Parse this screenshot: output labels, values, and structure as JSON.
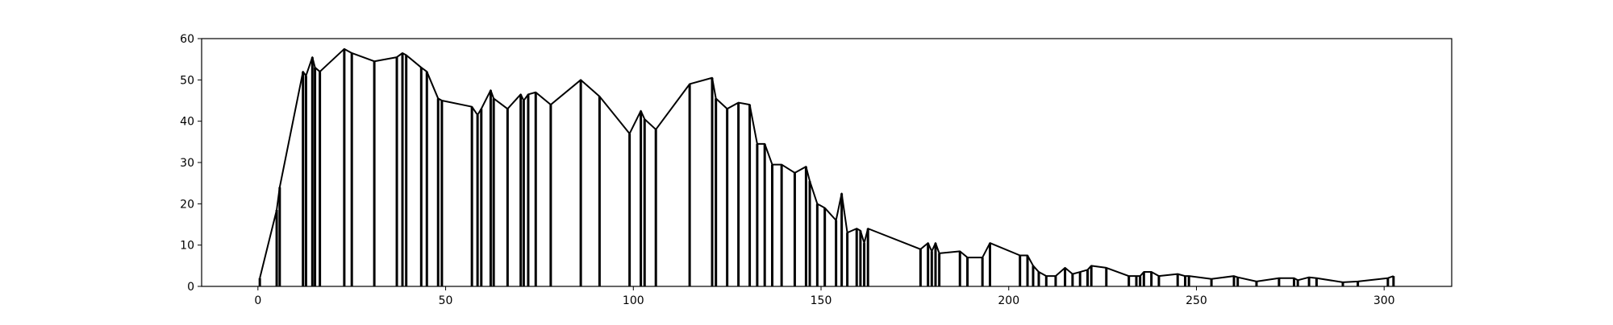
{
  "chart_data": {
    "type": "bar",
    "title": "",
    "xlabel": "",
    "ylabel": "",
    "xlim": [
      -15,
      318
    ],
    "ylim": [
      0,
      60
    ],
    "grid": false,
    "x_ticks": [
      0,
      50,
      100,
      150,
      200,
      250,
      300
    ],
    "y_ticks": [
      0,
      10,
      20,
      30,
      40,
      50,
      60
    ],
    "series": [
      {
        "style": "impulse-with-envelope",
        "color": "#000000",
        "points": [
          [
            0.5,
            2
          ],
          [
            5,
            18.5
          ],
          [
            5.8,
            24
          ],
          [
            12,
            52
          ],
          [
            12.8,
            51
          ],
          [
            14.5,
            55.5
          ],
          [
            15.2,
            53
          ],
          [
            16.5,
            52
          ],
          [
            23,
            57.5
          ],
          [
            25,
            56.5
          ],
          [
            31,
            54.5
          ],
          [
            37,
            55.5
          ],
          [
            38.5,
            56.5
          ],
          [
            39.5,
            56
          ],
          [
            43.5,
            53
          ],
          [
            45,
            52
          ],
          [
            48,
            45.5
          ],
          [
            49,
            45
          ],
          [
            57,
            43.5
          ],
          [
            58.5,
            41.5
          ],
          [
            59.5,
            43
          ],
          [
            62,
            47.5
          ],
          [
            62.8,
            45.5
          ],
          [
            66.5,
            43
          ],
          [
            70,
            46.5
          ],
          [
            70.8,
            45
          ],
          [
            72,
            46.5
          ],
          [
            74,
            47
          ],
          [
            78,
            44
          ],
          [
            86,
            50
          ],
          [
            91,
            46
          ],
          [
            99,
            37
          ],
          [
            102,
            42.5
          ],
          [
            103,
            40.5
          ],
          [
            106,
            38
          ],
          [
            115,
            49
          ],
          [
            121,
            50.5
          ],
          [
            122,
            45.5
          ],
          [
            125,
            43
          ],
          [
            128,
            44.5
          ],
          [
            131,
            44
          ],
          [
            133,
            34.5
          ],
          [
            135,
            34.5
          ],
          [
            137,
            29.5
          ],
          [
            139.5,
            29.5
          ],
          [
            143,
            27.5
          ],
          [
            146,
            29
          ],
          [
            147,
            25.5
          ],
          [
            149,
            20
          ],
          [
            151,
            19
          ],
          [
            154,
            16
          ],
          [
            155.5,
            22.5
          ],
          [
            157,
            13
          ],
          [
            159.5,
            14
          ],
          [
            160.5,
            13.5
          ],
          [
            161.5,
            10.5
          ],
          [
            162.5,
            14
          ],
          [
            176.5,
            9
          ],
          [
            178.5,
            10.5
          ],
          [
            179.5,
            8.5
          ],
          [
            180.5,
            10.5
          ],
          [
            181.5,
            8
          ],
          [
            187,
            8.5
          ],
          [
            189,
            7
          ],
          [
            193,
            7
          ],
          [
            195,
            10.5
          ],
          [
            203,
            7.5
          ],
          [
            205,
            7.5
          ],
          [
            206.5,
            5
          ],
          [
            208,
            3.5
          ],
          [
            210,
            2.5
          ],
          [
            212.5,
            2.5
          ],
          [
            215,
            4.5
          ],
          [
            217,
            3
          ],
          [
            219,
            3.5
          ],
          [
            221,
            4
          ],
          [
            222,
            5
          ],
          [
            226,
            4.5
          ],
          [
            232,
            2.5
          ],
          [
            234,
            2.5
          ],
          [
            235,
            2.5
          ],
          [
            236,
            3.5
          ],
          [
            238,
            3.5
          ],
          [
            240,
            2.5
          ],
          [
            245,
            3
          ],
          [
            247,
            2.5
          ],
          [
            248,
            2.5
          ],
          [
            254,
            1.8
          ],
          [
            260,
            2.5
          ],
          [
            261,
            2.2
          ],
          [
            266,
            1.2
          ],
          [
            272,
            2
          ],
          [
            276,
            2
          ],
          [
            277,
            1.5
          ],
          [
            280,
            2.2
          ],
          [
            282,
            2
          ],
          [
            289,
            1
          ],
          [
            293,
            1.2
          ],
          [
            301,
            2
          ],
          [
            302.5,
            2.5
          ]
        ]
      }
    ]
  }
}
